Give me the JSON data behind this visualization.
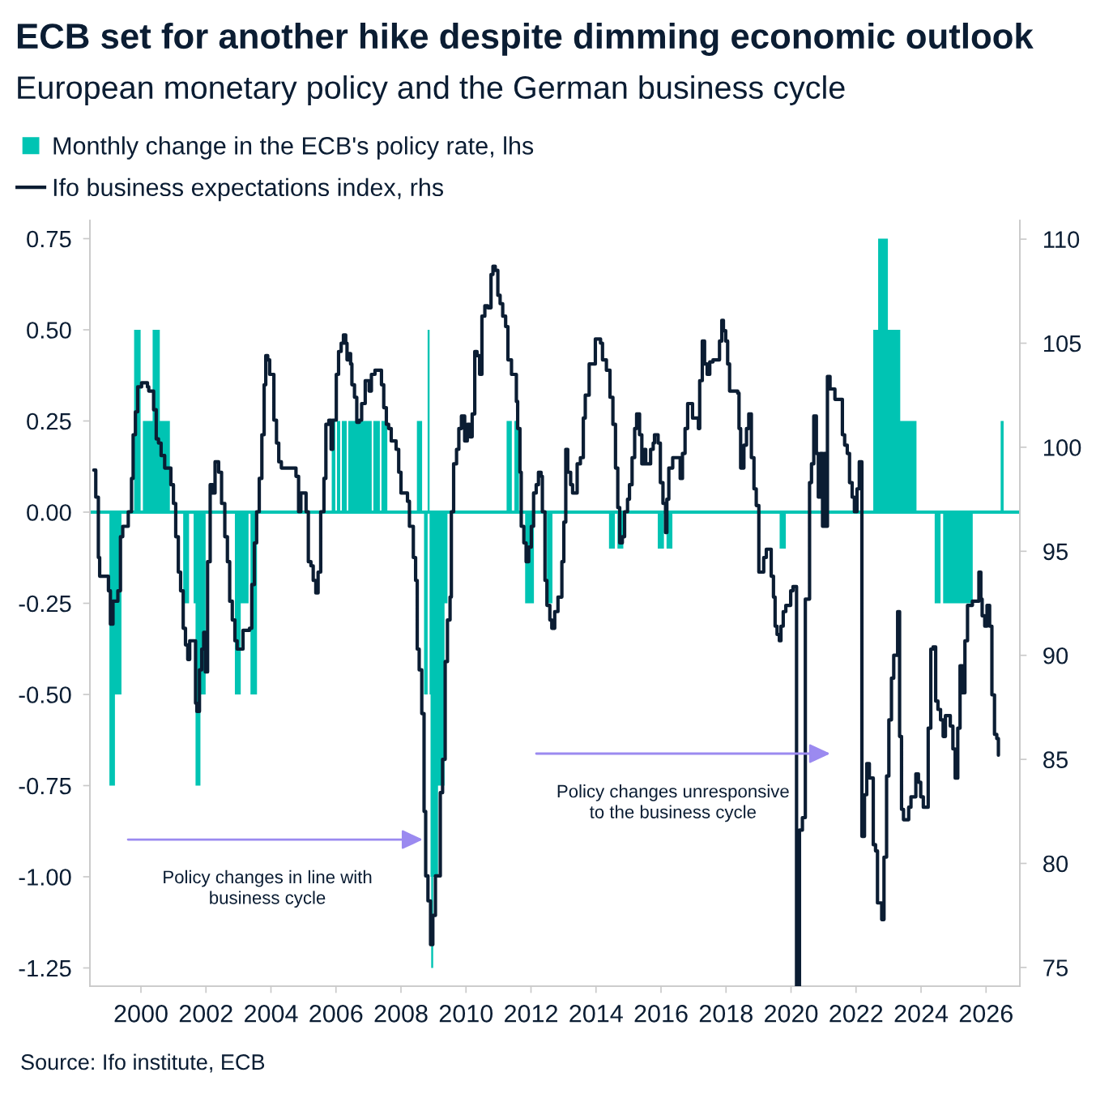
{
  "chart_data": {
    "type": "area",
    "title": "ECB set for another hike despite dimming economic outlook",
    "subtitle": "European monetary policy and the German business cycle",
    "series": [
      {
        "name": "Monthly change in the ECB's policy rate, lhs",
        "color": "#00c4b3",
        "x": [
          1999.03,
          1999.03,
          1999.2,
          1999.2,
          1999.4,
          1999.4,
          1999.79,
          1999.79,
          1999.99,
          1999.99,
          2000.06,
          2000.06,
          2000.36,
          2000.36,
          2000.58,
          2000.58,
          2000.89,
          2000.89,
          2001.3,
          2001.3,
          2001.48,
          2001.48,
          2001.62,
          2001.62,
          2001.68,
          2001.68,
          2001.83,
          2001.83,
          2001.99,
          2001.99,
          2002.89,
          2002.89,
          2003.07,
          2003.07,
          2003.31,
          2003.31,
          2003.37,
          2003.37,
          2003.57,
          2003.57,
          2005.87,
          2005.87,
          2005.98,
          2005.98,
          2006.03,
          2006.03,
          2006.13,
          2006.13,
          2006.18,
          2006.18,
          2006.33,
          2006.33,
          2006.38,
          2006.38,
          2007.1,
          2007.1,
          2007.15,
          2007.15,
          2007.35,
          2007.35,
          2007.4,
          2007.4,
          2007.58,
          2007.58,
          2008.49,
          2008.49,
          2008.65,
          2008.65,
          2008.71,
          2008.71,
          2008.82,
          2008.82,
          2008.88,
          2008.88,
          2008.91,
          2008.91,
          2008.93,
          2008.93,
          2008.99,
          2008.99,
          2009.14,
          2009.14,
          2009.34,
          2009.34,
          2009.43,
          2009.43,
          2011.25,
          2011.25,
          2011.41,
          2011.41,
          2011.49,
          2011.49,
          2011.63,
          2011.63,
          2011.82,
          2011.82,
          2012.09,
          2012.09,
          2012.49,
          2012.49,
          2012.66,
          2012.66,
          2014.4,
          2014.4,
          2014.58,
          2014.58,
          2014.66,
          2014.66,
          2014.84,
          2014.84,
          2015.9,
          2015.9,
          2016.09,
          2016.09,
          2016.17,
          2016.17,
          2016.35,
          2016.35,
          2019.65,
          2019.65,
          2019.84,
          2019.84,
          2022.53,
          2022.53,
          2022.68,
          2022.68,
          2022.98,
          2022.98,
          2023.36,
          2023.36,
          2023.86,
          2023.86,
          2024.42,
          2024.42,
          2024.6,
          2024.6,
          2024.68,
          2024.68,
          2025.59,
          2025.59,
          2026.45,
          2026.45,
          2026.54,
          2026.54
        ],
        "values": [
          0,
          -0.75,
          -0.75,
          -0.5,
          -0.5,
          0,
          0,
          0.5,
          0.5,
          0,
          0,
          0.25,
          0.25,
          0.5,
          0.5,
          0.25,
          0.25,
          0,
          0,
          -0.25,
          -0.25,
          0,
          0,
          -0.25,
          -0.25,
          -0.75,
          -0.75,
          -0.5,
          -0.5,
          0,
          0,
          -0.5,
          -0.5,
          -0.25,
          -0.25,
          0,
          0,
          -0.5,
          -0.5,
          0,
          0,
          0.25,
          0.25,
          0,
          0,
          0.25,
          0.25,
          0,
          0,
          0.25,
          0.25,
          0,
          0,
          0.25,
          0.25,
          0,
          0,
          0.25,
          0.25,
          0,
          0,
          0.25,
          0.25,
          0,
          0,
          0.25,
          0.25,
          0,
          0,
          -0.5,
          -0.5,
          0.5,
          0.5,
          -0.5,
          -0.5,
          -1.0,
          -1.0,
          -1.25,
          -1.25,
          -1.0,
          -1.0,
          -0.75,
          -0.75,
          -0.25,
          -0.25,
          0,
          0,
          0.25,
          0.25,
          0,
          0,
          0.25,
          0.25,
          0,
          0,
          -0.25,
          -0.25,
          0,
          0,
          -0.25,
          -0.25,
          0,
          0,
          -0.1,
          -0.1,
          0,
          0,
          -0.1,
          -0.1,
          0,
          0,
          -0.1,
          -0.1,
          0,
          0,
          -0.1,
          -0.1,
          0,
          0,
          -0.1,
          -0.1,
          0,
          0,
          0.5,
          0.5,
          0.75,
          0.75,
          0.5,
          0.5,
          0.25,
          0.25,
          0,
          0,
          -0.25,
          -0.25,
          0,
          0,
          -0.25,
          -0.25,
          0,
          0,
          0.25,
          0.25,
          0
        ]
      },
      {
        "name": "Ifo business expectations index, rhs",
        "type": "step",
        "axis": "y2",
        "color": "#0b1d33",
        "x": [
          1998.55,
          1998.61,
          1998.69,
          1998.73,
          1999.0,
          1999.06,
          1999.14,
          1999.29,
          1999.37,
          1999.44,
          1999.61,
          1999.71,
          1999.76,
          1999.83,
          1999.9,
          2000.02,
          2000.2,
          2000.24,
          2000.39,
          2000.47,
          2000.54,
          2000.62,
          2000.73,
          2000.92,
          2001.0,
          2001.07,
          2001.15,
          2001.22,
          2001.3,
          2001.37,
          2001.44,
          2001.5,
          2001.68,
          2001.72,
          2001.8,
          2001.87,
          2001.93,
          2001.98,
          2002.05,
          2002.13,
          2002.21,
          2002.28,
          2002.39,
          2002.48,
          2002.58,
          2002.66,
          2002.73,
          2002.81,
          2002.89,
          2002.96,
          2003.14,
          2003.34,
          2003.41,
          2003.49,
          2003.56,
          2003.64,
          2003.72,
          2003.79,
          2003.84,
          2003.9,
          2003.96,
          2004.09,
          2004.17,
          2004.24,
          2004.32,
          2004.77,
          2004.85,
          2004.92,
          2005.08,
          2005.15,
          2005.23,
          2005.3,
          2005.38,
          2005.45,
          2005.53,
          2005.63,
          2005.69,
          2005.78,
          2005.85,
          2005.9,
          2006.01,
          2006.08,
          2006.16,
          2006.23,
          2006.3,
          2006.34,
          2006.39,
          2006.45,
          2006.49,
          2006.57,
          2006.64,
          2006.72,
          2006.79,
          2006.9,
          2007.02,
          2007.09,
          2007.2,
          2007.4,
          2007.47,
          2007.55,
          2007.62,
          2007.7,
          2007.85,
          2007.93,
          2008.0,
          2008.2,
          2008.26,
          2008.38,
          2008.45,
          2008.5,
          2008.56,
          2008.64,
          2008.71,
          2008.76,
          2008.83,
          2008.91,
          2008.98,
          2009.06,
          2009.21,
          2009.28,
          2009.36,
          2009.43,
          2009.51,
          2009.55,
          2009.62,
          2009.71,
          2009.78,
          2009.86,
          2009.96,
          2010.04,
          2010.12,
          2010.19,
          2010.27,
          2010.34,
          2010.42,
          2010.49,
          2010.58,
          2010.67,
          2010.77,
          2010.83,
          2010.9,
          2010.98,
          2011.05,
          2011.13,
          2011.22,
          2011.29,
          2011.4,
          2011.55,
          2011.59,
          2011.66,
          2011.7,
          2011.78,
          2011.85,
          2011.93,
          2012.01,
          2012.08,
          2012.16,
          2012.23,
          2012.31,
          2012.35,
          2012.43,
          2012.49,
          2012.58,
          2012.64,
          2012.73,
          2012.83,
          2012.95,
          2013.01,
          2013.07,
          2013.13,
          2013.22,
          2013.28,
          2013.42,
          2013.52,
          2013.61,
          2013.67,
          2013.79,
          2013.98,
          2014.14,
          2014.2,
          2014.32,
          2014.43,
          2014.52,
          2014.6,
          2014.67,
          2014.73,
          2014.81,
          2014.88,
          2014.97,
          2015.03,
          2015.11,
          2015.19,
          2015.25,
          2015.34,
          2015.41,
          2015.49,
          2015.53,
          2015.68,
          2015.76,
          2015.8,
          2015.91,
          2015.98,
          2016.06,
          2016.14,
          2016.18,
          2016.24,
          2016.36,
          2016.59,
          2016.66,
          2016.74,
          2016.82,
          2016.97,
          2017.15,
          2017.19,
          2017.27,
          2017.34,
          2017.42,
          2017.5,
          2017.6,
          2017.8,
          2017.87,
          2017.92,
          2017.99,
          2018.05,
          2018.11,
          2018.36,
          2018.4,
          2018.45,
          2018.55,
          2018.63,
          2018.7,
          2018.78,
          2018.86,
          2018.93,
          2019.01,
          2019.16,
          2019.24,
          2019.39,
          2019.46,
          2019.51,
          2019.57,
          2019.64,
          2019.69,
          2019.76,
          2019.84,
          2019.99,
          2020.06,
          2020.17,
          2020.26,
          2020.35,
          2020.44,
          2020.57,
          2020.63,
          2020.7,
          2020.78,
          2020.84,
          2020.9,
          2020.97,
          2021.02,
          2021.08,
          2021.12,
          2021.2,
          2021.35,
          2021.58,
          2021.65,
          2021.73,
          2021.8,
          2021.88,
          2021.95,
          2022.03,
          2022.1,
          2022.18,
          2022.26,
          2022.33,
          2022.41,
          2022.53,
          2022.6,
          2022.66,
          2022.79,
          2022.86,
          2022.94,
          2023.01,
          2023.09,
          2023.16,
          2023.28,
          2023.34,
          2023.4,
          2023.46,
          2023.62,
          2023.69,
          2023.84,
          2023.92,
          2023.99,
          2024.07,
          2024.22,
          2024.3,
          2024.37,
          2024.45,
          2024.52,
          2024.6,
          2024.68,
          2024.75,
          2024.9,
          2024.98,
          2025.05,
          2025.13,
          2025.2,
          2025.28,
          2025.35,
          2025.43,
          2025.58,
          2025.78,
          2025.84,
          2025.88,
          2025.96,
          2026.03,
          2026.11,
          2026.18,
          2026.26,
          2026.33,
          2026.38
        ],
        "values": [
          98.9,
          97.6,
          94.7,
          93.8,
          93.1,
          91.5,
          92.6,
          93.1,
          95.7,
          96.2,
          96.9,
          98.5,
          100.6,
          101.7,
          102.9,
          103.1,
          102.9,
          102.7,
          101.8,
          100.4,
          100.2,
          99.6,
          99.0,
          98.2,
          97.3,
          95.7,
          94.0,
          93.1,
          91.3,
          90.5,
          89.8,
          90.7,
          87.7,
          87.3,
          89.3,
          90.3,
          91.1,
          89.2,
          94.5,
          98.2,
          97.8,
          99.3,
          98.8,
          97.3,
          95.7,
          94.5,
          92.6,
          91.7,
          90.7,
          90.3,
          91.2,
          91.3,
          93.4,
          95.4,
          96.9,
          98.5,
          100.6,
          103.0,
          104.4,
          104.2,
          103.5,
          101.3,
          100.2,
          99.3,
          99.0,
          98.6,
          96.9,
          97.8,
          96.9,
          94.5,
          94.3,
          93.6,
          93.0,
          94.0,
          96.9,
          98.5,
          101.1,
          101.3,
          99.9,
          101.3,
          103.5,
          104.6,
          105.0,
          105.4,
          105.0,
          104.2,
          104.5,
          104.0,
          103.0,
          102.4,
          101.2,
          101.3,
          102.1,
          103.2,
          102.7,
          103.5,
          103.7,
          103.0,
          101.9,
          101.1,
          100.9,
          100.3,
          99.9,
          98.8,
          97.8,
          97.4,
          96.2,
          94.7,
          93.6,
          90.3,
          89.3,
          87.2,
          82.5,
          79.4,
          78.2,
          76.1,
          77.5,
          79.4,
          83.4,
          85.0,
          89.7,
          91.7,
          92.8,
          96.9,
          99.2,
          99.9,
          100.9,
          101.5,
          100.3,
          101.1,
          100.5,
          101.6,
          104.6,
          104.4,
          103.5,
          106.3,
          106.8,
          106.7,
          108.3,
          108.7,
          108.5,
          107.3,
          106.9,
          106.3,
          105.8,
          104.2,
          103.5,
          102.2,
          100.9,
          98.8,
          96.2,
          95.4,
          94.5,
          95.2,
          96.2,
          97.8,
          98.2,
          98.8,
          98.6,
          96.9,
          93.6,
          92.4,
          91.7,
          91.3,
          92.1,
          92.8,
          94.5,
          96.4,
          99.9,
          98.8,
          98.2,
          97.8,
          99.2,
          99.5,
          101.4,
          102.5,
          104.0,
          105.2,
          105.0,
          104.2,
          103.7,
          102.4,
          101.1,
          99.0,
          97.1,
          95.4,
          95.7,
          96.9,
          97.5,
          98.2,
          99.5,
          100.9,
          101.6,
          100.6,
          99.2,
          99.9,
          99.2,
          99.9,
          100.2,
          100.6,
          100.2,
          98.3,
          97.3,
          95.9,
          97.5,
          99.0,
          99.5,
          98.5,
          99.7,
          100.9,
          102.1,
          101.4,
          100.9,
          103.2,
          105.1,
          104.0,
          103.5,
          104.1,
          104.2,
          105.1,
          106.1,
          105.6,
          105.1,
          104.0,
          102.7,
          102.6,
          100.9,
          99.0,
          100.1,
          100.9,
          101.6,
          99.5,
          98.0,
          97.2,
          94.0,
          94.7,
          95.1,
          93.8,
          92.8,
          91.4,
          91.0,
          90.7,
          91.4,
          92.1,
          92.4,
          93.1,
          93.3,
          74.1,
          81.6,
          82.2,
          92.7,
          98.3,
          99.2,
          101.5,
          99.7,
          97.6,
          99.7,
          96.2,
          99.7,
          96.2,
          103.4,
          102.8,
          102.3,
          100.6,
          100.1,
          99.7,
          98.3,
          97.6,
          96.9,
          98.0,
          99.3,
          81.3,
          83.3,
          84.8,
          84.1,
          80.9,
          80.6,
          78.1,
          77.3,
          80.3,
          84.2,
          86.9,
          88.9,
          90.0,
          92.1,
          86.1,
          82.6,
          82.1,
          82.7,
          83.2,
          84.3,
          83.9,
          83.2,
          82.7,
          86.5,
          90.3,
          90.4,
          87.8,
          87.4,
          86.9,
          86.1,
          87.1,
          86.6,
          85.5,
          84.1,
          86.5,
          89.5,
          88.2,
          90.7,
          92.4,
          92.6,
          94.0,
          92.7,
          91.9,
          91.4,
          92.4,
          91.4,
          88.1,
          86.2,
          86.0,
          85.2
        ]
      }
    ],
    "ref_lines": [
      {
        "axis": "y",
        "value": 0,
        "color": "#00c4b3"
      }
    ],
    "xlim": [
      1998.43,
      2027.04
    ],
    "xticks": [
      2000,
      2002,
      2004,
      2006,
      2008,
      2010,
      2012,
      2014,
      2016,
      2018,
      2020,
      2022,
      2024,
      2026
    ],
    "ylim": [
      -1.3,
      0.8
    ],
    "yticks": [
      0.75,
      {
        "value": 0.5,
        "label": "0.50"
      },
      0.25,
      {
        "value": 0,
        "label": "0.00"
      },
      -0.25,
      {
        "value": -0.5,
        "label": "-0.50"
      },
      -0.75,
      {
        "value": -1.0,
        "label": "-1.00"
      },
      -1.25
    ],
    "y2lim": [
      74.1,
      110.9
    ],
    "y2ticks": [
      75,
      80,
      85,
      90,
      95,
      100,
      105,
      110
    ],
    "legend": "top left",
    "annotations": [
      "Policy changes in line with\nbusiness cycle",
      "Policy changes unresponsive\nto the business cycle",
      "Source: Ifo institute, ECB"
    ]
  }
}
